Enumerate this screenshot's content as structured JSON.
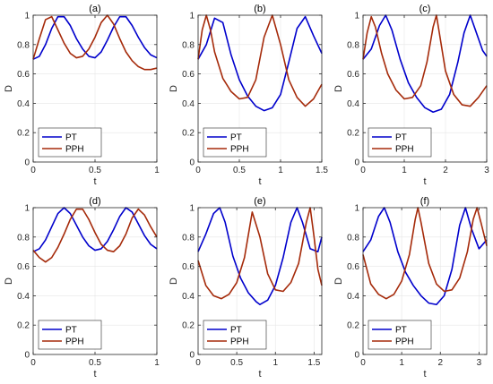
{
  "figure": {
    "colors": {
      "PT": "#0000cc",
      "PPH": "#a52a0a",
      "axis": "#262626",
      "grid": "#e6e6e6"
    }
  },
  "chart_data": [
    {
      "type": "line",
      "title": "(a)",
      "xlabel": "t",
      "ylabel": "D",
      "xlim": [
        0,
        1
      ],
      "ylim": [
        0,
        1
      ],
      "xticks": [
        0,
        0.5,
        1
      ],
      "xtick_labels": [
        "0",
        "0.5",
        "1"
      ],
      "yticks": [
        0,
        0.2,
        0.4,
        0.6,
        0.8,
        1
      ],
      "ytick_labels": [
        "0",
        "0.2",
        "0.4",
        "0.6",
        "0.8",
        "1"
      ],
      "grid": true,
      "legend_position": "bottom-left",
      "series": [
        {
          "name": "PT",
          "x": [
            0,
            0.05,
            0.1,
            0.15,
            0.2,
            0.25,
            0.3,
            0.35,
            0.4,
            0.45,
            0.5,
            0.55,
            0.6,
            0.65,
            0.7,
            0.75,
            0.8,
            0.85,
            0.9,
            0.95,
            1.0
          ],
          "y": [
            0.7,
            0.72,
            0.8,
            0.91,
            0.99,
            0.99,
            0.93,
            0.84,
            0.77,
            0.72,
            0.71,
            0.75,
            0.83,
            0.92,
            0.99,
            0.99,
            0.93,
            0.85,
            0.78,
            0.73,
            0.71
          ]
        },
        {
          "name": "PPH",
          "x": [
            0,
            0.05,
            0.1,
            0.15,
            0.2,
            0.25,
            0.3,
            0.35,
            0.4,
            0.45,
            0.5,
            0.55,
            0.6,
            0.65,
            0.7,
            0.75,
            0.8,
            0.85,
            0.9,
            0.95,
            1.0
          ],
          "y": [
            0.7,
            0.84,
            0.97,
            0.99,
            0.9,
            0.81,
            0.74,
            0.71,
            0.72,
            0.77,
            0.85,
            0.95,
            1.0,
            0.94,
            0.84,
            0.75,
            0.69,
            0.65,
            0.63,
            0.63,
            0.64
          ]
        }
      ]
    },
    {
      "type": "line",
      "title": "(b)",
      "xlabel": "t",
      "ylabel": "D",
      "xlim": [
        0,
        1.5
      ],
      "ylim": [
        0,
        1
      ],
      "xticks": [
        0,
        0.5,
        1,
        1.5
      ],
      "xtick_labels": [
        "0",
        "0.5",
        "1",
        "1.5"
      ],
      "yticks": [
        0,
        0.2,
        0.4,
        0.6,
        0.8,
        1
      ],
      "ytick_labels": [
        "0",
        "0.2",
        "0.4",
        "0.6",
        "0.8",
        "1"
      ],
      "grid": true,
      "legend_position": "bottom-left",
      "series": [
        {
          "name": "PT",
          "x": [
            0,
            0.1,
            0.2,
            0.3,
            0.4,
            0.5,
            0.6,
            0.7,
            0.8,
            0.9,
            1.0,
            1.1,
            1.2,
            1.3,
            1.4,
            1.5
          ],
          "y": [
            0.7,
            0.8,
            0.98,
            0.95,
            0.73,
            0.56,
            0.45,
            0.38,
            0.35,
            0.37,
            0.46,
            0.68,
            0.91,
            0.99,
            0.86,
            0.74
          ]
        },
        {
          "name": "PPH",
          "x": [
            0,
            0.05,
            0.1,
            0.15,
            0.2,
            0.3,
            0.4,
            0.5,
            0.6,
            0.7,
            0.8,
            0.9,
            1.0,
            1.1,
            1.2,
            1.3,
            1.4,
            1.5
          ],
          "y": [
            0.7,
            0.9,
            1.0,
            0.9,
            0.75,
            0.57,
            0.48,
            0.43,
            0.44,
            0.56,
            0.85,
            1.0,
            0.8,
            0.56,
            0.44,
            0.38,
            0.43,
            0.53
          ]
        }
      ]
    },
    {
      "type": "line",
      "title": "(c)",
      "xlabel": "t",
      "ylabel": "D",
      "xlim": [
        0,
        3
      ],
      "ylim": [
        0,
        1
      ],
      "xticks": [
        0,
        1,
        2,
        3
      ],
      "xtick_labels": [
        "0",
        "1",
        "2",
        "3"
      ],
      "yticks": [
        0,
        0.2,
        0.4,
        0.6,
        0.8,
        1
      ],
      "ytick_labels": [
        "0",
        "0.2",
        "0.4",
        "0.6",
        "0.8",
        "1"
      ],
      "grid": true,
      "legend_position": "bottom-left",
      "series": [
        {
          "name": "PT",
          "x": [
            0,
            0.2,
            0.4,
            0.55,
            0.7,
            0.9,
            1.1,
            1.3,
            1.5,
            1.7,
            1.9,
            2.1,
            2.3,
            2.45,
            2.6,
            2.75,
            2.9,
            3.0
          ],
          "y": [
            0.7,
            0.77,
            0.93,
            1.0,
            0.9,
            0.7,
            0.54,
            0.44,
            0.37,
            0.34,
            0.36,
            0.46,
            0.68,
            0.88,
            1.0,
            0.88,
            0.76,
            0.72
          ]
        },
        {
          "name": "PPH",
          "x": [
            0,
            0.1,
            0.2,
            0.3,
            0.45,
            0.6,
            0.8,
            1.0,
            1.2,
            1.4,
            1.55,
            1.7,
            1.78,
            1.85,
            2.0,
            2.2,
            2.4,
            2.6,
            2.8,
            3.0
          ],
          "y": [
            0.7,
            0.88,
            0.99,
            0.92,
            0.74,
            0.6,
            0.49,
            0.43,
            0.44,
            0.52,
            0.68,
            0.92,
            1.0,
            0.88,
            0.62,
            0.46,
            0.39,
            0.38,
            0.44,
            0.52
          ]
        }
      ]
    },
    {
      "type": "line",
      "title": "(d)",
      "xlabel": "t",
      "ylabel": "D",
      "xlim": [
        0,
        1
      ],
      "ylim": [
        0,
        1
      ],
      "xticks": [
        0,
        0.5,
        1
      ],
      "xtick_labels": [
        "0",
        "0.5",
        "1"
      ],
      "yticks": [
        0,
        0.2,
        0.4,
        0.6,
        0.8,
        1
      ],
      "ytick_labels": [
        "0",
        "0.2",
        "0.4",
        "0.6",
        "0.8",
        "1"
      ],
      "grid": true,
      "legend_position": "bottom-left",
      "series": [
        {
          "name": "PT",
          "x": [
            0,
            0.05,
            0.1,
            0.15,
            0.2,
            0.25,
            0.3,
            0.35,
            0.4,
            0.45,
            0.5,
            0.55,
            0.6,
            0.65,
            0.7,
            0.75,
            0.8,
            0.85,
            0.9,
            0.95,
            1.0
          ],
          "y": [
            0.7,
            0.72,
            0.78,
            0.87,
            0.96,
            1.0,
            0.96,
            0.88,
            0.8,
            0.74,
            0.71,
            0.72,
            0.77,
            0.85,
            0.94,
            1.0,
            0.97,
            0.89,
            0.81,
            0.75,
            0.72
          ]
        },
        {
          "name": "PPH",
          "x": [
            0,
            0.05,
            0.1,
            0.15,
            0.2,
            0.25,
            0.3,
            0.35,
            0.4,
            0.45,
            0.5,
            0.55,
            0.6,
            0.65,
            0.7,
            0.75,
            0.8,
            0.85,
            0.9,
            0.95,
            1.0
          ],
          "y": [
            0.71,
            0.66,
            0.63,
            0.66,
            0.73,
            0.82,
            0.92,
            0.99,
            0.99,
            0.92,
            0.83,
            0.75,
            0.71,
            0.7,
            0.74,
            0.82,
            0.93,
            0.99,
            0.95,
            0.87,
            0.8
          ]
        }
      ]
    },
    {
      "type": "line",
      "title": "(e)",
      "xlabel": "t",
      "ylabel": "D",
      "xlim": [
        0,
        1.6
      ],
      "ylim": [
        0,
        1
      ],
      "xticks": [
        0,
        0.5,
        1,
        1.5
      ],
      "xtick_labels": [
        "0",
        "0.5",
        "1",
        "1.5"
      ],
      "yticks": [
        0,
        0.2,
        0.4,
        0.6,
        0.8,
        1
      ],
      "ytick_labels": [
        "0",
        "0.2",
        "0.4",
        "0.6",
        "0.8",
        "1"
      ],
      "grid": true,
      "legend_position": "bottom-left",
      "series": [
        {
          "name": "PT",
          "x": [
            0,
            0.1,
            0.2,
            0.28,
            0.35,
            0.45,
            0.55,
            0.65,
            0.75,
            0.8,
            0.9,
            1.0,
            1.1,
            1.2,
            1.28,
            1.35,
            1.45,
            1.55,
            1.6
          ],
          "y": [
            0.7,
            0.82,
            0.96,
            1.0,
            0.9,
            0.67,
            0.52,
            0.42,
            0.36,
            0.34,
            0.37,
            0.47,
            0.66,
            0.9,
            1.0,
            0.9,
            0.72,
            0.7,
            0.8
          ]
        },
        {
          "name": "PPH",
          "x": [
            0,
            0.1,
            0.2,
            0.3,
            0.4,
            0.5,
            0.6,
            0.7,
            0.8,
            0.9,
            1.0,
            1.1,
            1.2,
            1.3,
            1.4,
            1.45,
            1.5,
            1.55,
            1.6
          ],
          "y": [
            0.64,
            0.47,
            0.4,
            0.38,
            0.41,
            0.49,
            0.66,
            0.97,
            0.8,
            0.55,
            0.44,
            0.43,
            0.49,
            0.62,
            0.9,
            1.0,
            0.8,
            0.58,
            0.47
          ]
        }
      ]
    },
    {
      "type": "line",
      "title": "(f)",
      "xlabel": "t",
      "ylabel": "D",
      "xlim": [
        0,
        3.2
      ],
      "ylim": [
        0,
        1
      ],
      "xticks": [
        0,
        1,
        2,
        3
      ],
      "xtick_labels": [
        "0",
        "1",
        "2",
        "3"
      ],
      "yticks": [
        0,
        0.2,
        0.4,
        0.6,
        0.8,
        1
      ],
      "ytick_labels": [
        "0",
        "0.2",
        "0.4",
        "0.6",
        "0.8",
        "1"
      ],
      "grid": true,
      "legend_position": "bottom-left",
      "series": [
        {
          "name": "PT",
          "x": [
            0,
            0.2,
            0.4,
            0.55,
            0.7,
            0.9,
            1.1,
            1.3,
            1.5,
            1.7,
            1.9,
            2.1,
            2.3,
            2.5,
            2.65,
            2.8,
            3.0,
            3.2
          ],
          "y": [
            0.7,
            0.78,
            0.94,
            1.0,
            0.9,
            0.7,
            0.56,
            0.47,
            0.4,
            0.35,
            0.34,
            0.4,
            0.58,
            0.88,
            1.0,
            0.86,
            0.72,
            0.78
          ]
        },
        {
          "name": "PPH",
          "x": [
            0,
            0.2,
            0.4,
            0.6,
            0.8,
            1.0,
            1.2,
            1.35,
            1.42,
            1.5,
            1.7,
            1.9,
            2.1,
            2.3,
            2.5,
            2.7,
            2.85,
            2.95,
            3.05,
            3.2
          ],
          "y": [
            0.68,
            0.48,
            0.41,
            0.38,
            0.41,
            0.5,
            0.68,
            0.92,
            1.0,
            0.9,
            0.62,
            0.48,
            0.43,
            0.44,
            0.52,
            0.7,
            0.92,
            1.0,
            0.9,
            0.74
          ]
        }
      ]
    }
  ]
}
